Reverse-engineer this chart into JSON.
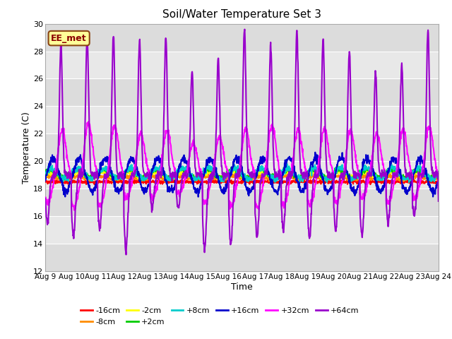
{
  "title": "Soil/Water Temperature Set 3",
  "xlabel": "Time",
  "ylabel": "Temperature (C)",
  "ylim": [
    12,
    30
  ],
  "xlim": [
    0,
    15
  ],
  "yticks": [
    12,
    14,
    16,
    18,
    20,
    22,
    24,
    26,
    28,
    30
  ],
  "xtick_labels": [
    "Aug 9",
    "Aug 10",
    "Aug 11",
    "Aug 12",
    "Aug 13",
    "Aug 14",
    "Aug 15",
    "Aug 16",
    "Aug 17",
    "Aug 18",
    "Aug 19",
    "Aug 20",
    "Aug 21",
    "Aug 22",
    "Aug 23",
    "Aug 24"
  ],
  "annotation_text": "EE_met",
  "annotation_color": "#8B0000",
  "annotation_bg": "#FFFF99",
  "annotation_border": "#8B4513",
  "series": {
    "-16cm": {
      "color": "#FF0000",
      "lw": 1.5
    },
    "-8cm": {
      "color": "#FF8C00",
      "lw": 1.5
    },
    "-2cm": {
      "color": "#FFFF00",
      "lw": 1.5
    },
    "+2cm": {
      "color": "#00CC00",
      "lw": 1.5
    },
    "+8cm": {
      "color": "#00CCCC",
      "lw": 1.5
    },
    "+16cm": {
      "color": "#0000CC",
      "lw": 1.5
    },
    "+32cm": {
      "color": "#FF00FF",
      "lw": 1.5
    },
    "+64cm": {
      "color": "#9900CC",
      "lw": 1.5
    }
  },
  "band_colors": [
    "#DCDCDC",
    "#E8E8E8"
  ],
  "plot_bg": "#E8E8E8",
  "fig_bg": "#FFFFFF",
  "grid_color": "#FFFFFF",
  "legend_order": [
    "-16cm",
    "-8cm",
    "-2cm",
    "+2cm",
    "+8cm",
    "+16cm",
    "+32cm",
    "+64cm"
  ]
}
